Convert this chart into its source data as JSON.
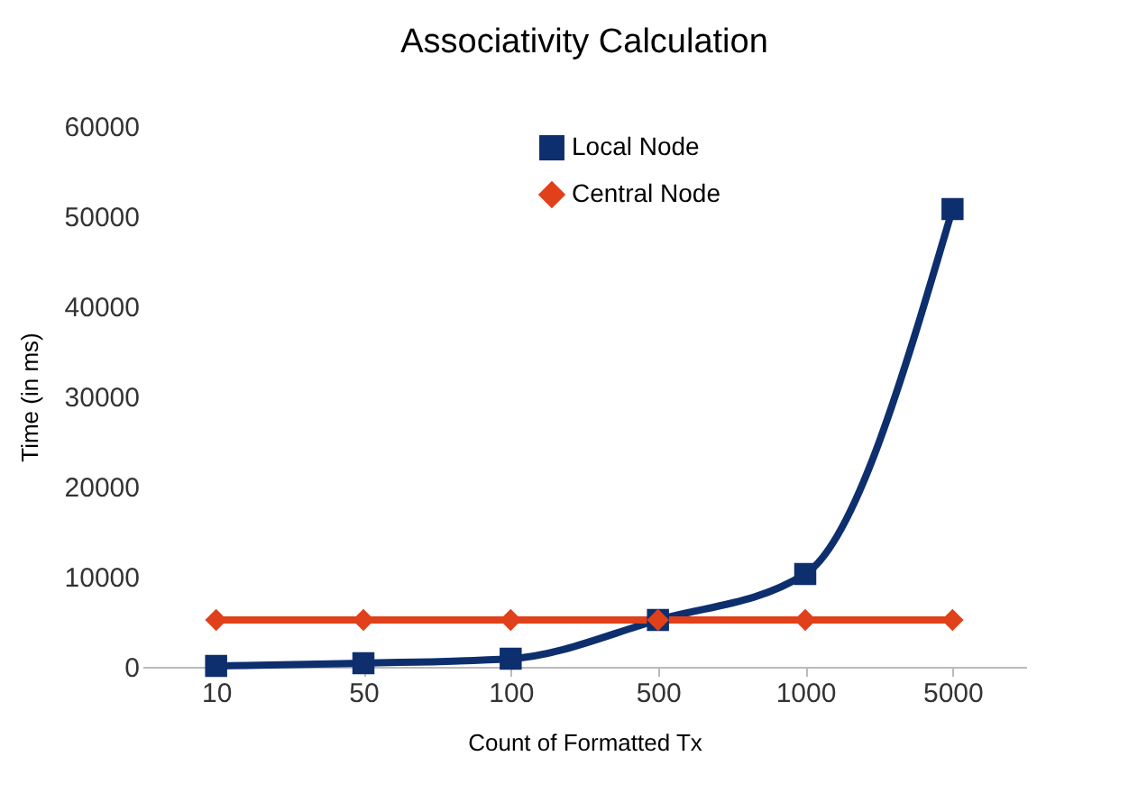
{
  "chart_data": {
    "type": "line",
    "title": "Associativity Calculation",
    "xlabel": "Count of Formatted Tx",
    "ylabel": "Time (in ms)",
    "categories": [
      "10",
      "50",
      "100",
      "500",
      "1000",
      "5000"
    ],
    "series": [
      {
        "name": "Local Node",
        "color": "#0d2f6e",
        "marker": "square",
        "values": [
          100,
          400,
          900,
          5200,
          10300,
          50800
        ]
      },
      {
        "name": "Central Node",
        "color": "#e0401a",
        "marker": "diamond",
        "values": [
          5200,
          5200,
          5200,
          5200,
          5200,
          5200
        ]
      }
    ],
    "ylim": [
      0,
      60000
    ],
    "yticks": [
      0,
      10000,
      20000,
      30000,
      40000,
      50000,
      60000
    ],
    "grid": false,
    "legend": "top right",
    "line_style": "solid"
  }
}
